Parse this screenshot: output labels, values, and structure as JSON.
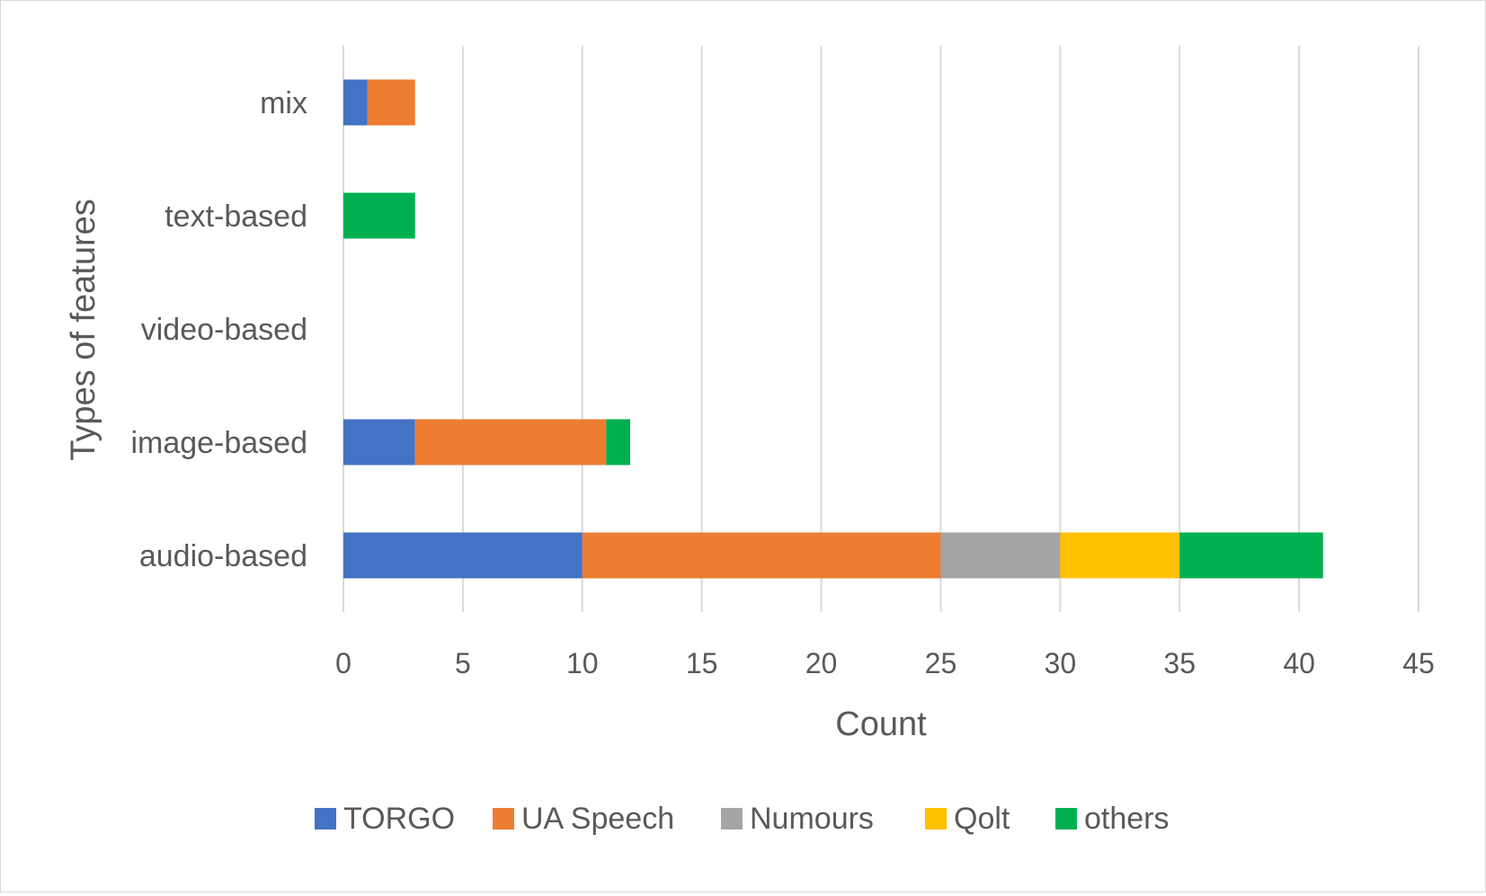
{
  "chart_data": {
    "type": "bar",
    "orientation": "horizontal",
    "stacked": true,
    "title": "",
    "xlabel": "Count",
    "ylabel": "Types of features",
    "categories": [
      "mix",
      "text-based",
      "video-based",
      "image-based",
      "audio-based"
    ],
    "series": [
      {
        "name": "TORGO",
        "color": "#4472c4",
        "values": [
          1,
          0,
          0,
          3,
          10
        ]
      },
      {
        "name": "UA Speech",
        "color": "#ed7d31",
        "values": [
          2,
          0,
          0,
          8,
          15
        ]
      },
      {
        "name": "Numours",
        "color": "#a5a5a5",
        "values": [
          0,
          0,
          0,
          0,
          5
        ]
      },
      {
        "name": "Qolt",
        "color": "#ffc000",
        "values": [
          0,
          0,
          0,
          0,
          5
        ]
      },
      {
        "name": "others",
        "color": "#00b050",
        "values": [
          0,
          3,
          0,
          1,
          6
        ]
      }
    ],
    "xlim": [
      0,
      45
    ],
    "xticks": [
      "0",
      "5",
      "10",
      "15",
      "20",
      "25",
      "30",
      "35",
      "40",
      "45"
    ],
    "grid": "vertical",
    "legend": "bottom"
  }
}
